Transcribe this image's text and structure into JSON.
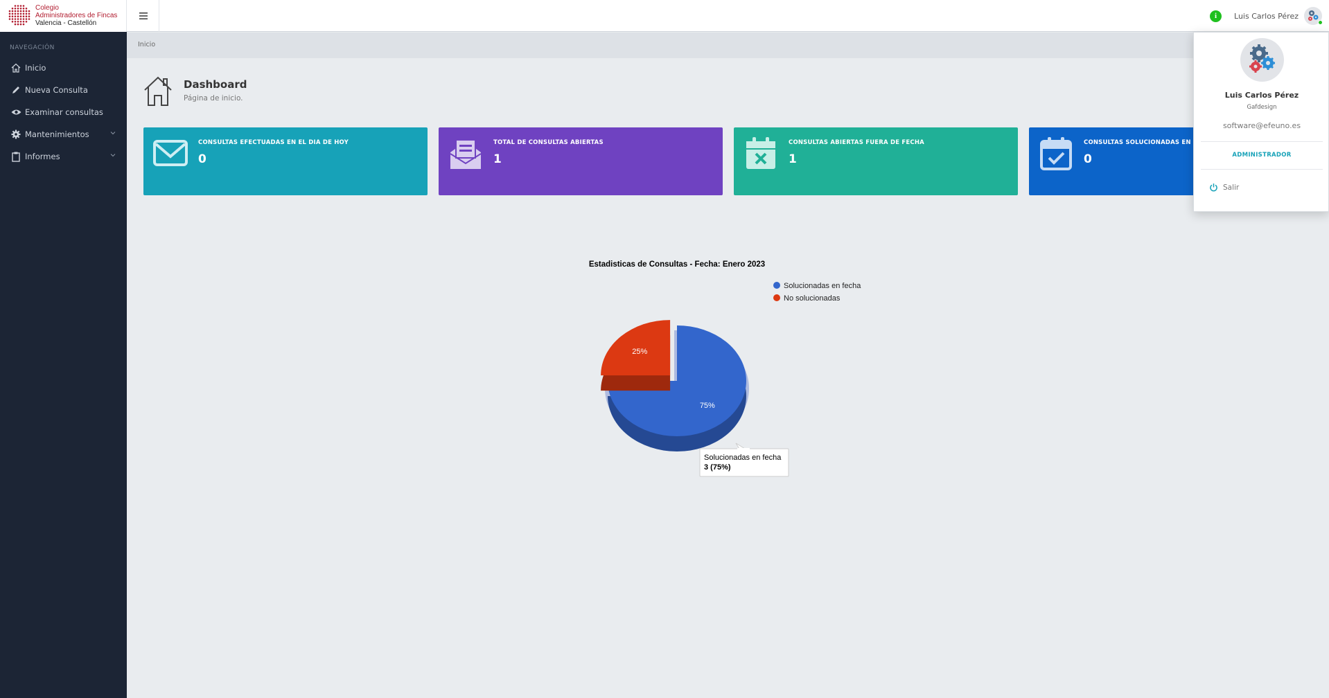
{
  "logo": {
    "line1": "Colegio",
    "line2": "Administradores de Fincas",
    "line3": "Valencia - Castellón"
  },
  "topbar": {
    "user_name": "Luis Carlos Pérez",
    "info_icon": "info-icon",
    "menu_icon": "hamburger-menu-icon"
  },
  "sidebar": {
    "header": "NAVEGACIÓN",
    "items": [
      {
        "label": "Inicio",
        "icon": "home-icon"
      },
      {
        "label": "Nueva Consulta",
        "icon": "pencil-icon"
      },
      {
        "label": "Examinar consultas",
        "icon": "eye-icon"
      },
      {
        "label": "Mantenimientos",
        "icon": "gear-icon",
        "has_submenu": true
      },
      {
        "label": "Informes",
        "icon": "clipboard-icon",
        "has_submenu": true
      }
    ]
  },
  "breadcrumb": "Inicio",
  "page": {
    "title": "Dashboard",
    "subtitle": "Página de inicio."
  },
  "cards": [
    {
      "label": "CONSULTAS EFECTUADAS EN EL DIA DE HOY",
      "value": "0",
      "color": "#17a2b8",
      "icon": "envelope-icon"
    },
    {
      "label": "TOTAL DE CONSULTAS ABIERTAS",
      "value": "1",
      "color": "#6f42c1",
      "icon": "envelope-open-icon"
    },
    {
      "label": "CONSULTAS ABIERTAS FUERA DE FECHA",
      "value": "1",
      "color": "#20b097",
      "icon": "calendar-x-icon"
    },
    {
      "label": "CONSULTAS SOLUCIONADAS EN EL",
      "value": "0",
      "color": "#0c64c9",
      "icon": "calendar-check-icon"
    }
  ],
  "chart_data": {
    "type": "pie",
    "title": "Estadisticas de Consultas - Fecha: Enero 2023",
    "series": [
      {
        "name": "Solucionadas en fecha",
        "value": 3,
        "percent_label": "75%",
        "color": "#3366cc"
      },
      {
        "name": "No solucionadas",
        "value": 1,
        "percent_label": "25%",
        "color": "#dc3912"
      }
    ],
    "legend_position": "top-right",
    "tooltip": {
      "line1": "Solucionadas en fecha",
      "line2": "3 (75%)"
    }
  },
  "user_dropdown": {
    "name": "Luis Carlos Pérez",
    "company": "Gafdesign",
    "email": "software@efeuno.es",
    "role": "ADMINISTRADOR",
    "logout": "Salir"
  }
}
